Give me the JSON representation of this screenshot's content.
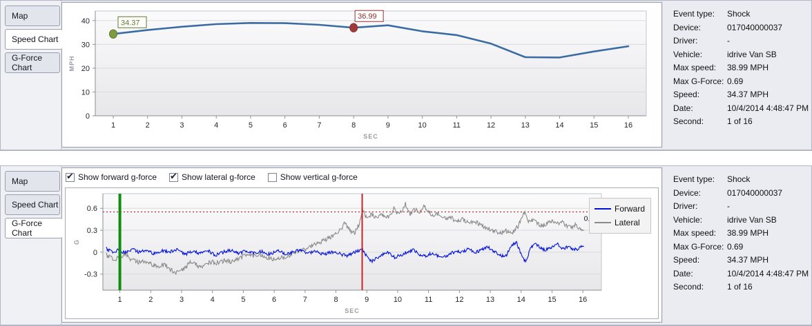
{
  "colors": {
    "speed_line": "#3a6ca3",
    "start_marker": "#7d9b41",
    "start_marker_dark": "#5e7a2a",
    "current_marker": "#a03939",
    "current_marker_dark": "#8c2f2f",
    "forward": "#0010d9",
    "lateral": "#8a8a8a",
    "threshold": "#cc0000",
    "start_vline": "#0d8f0d",
    "cursor_vline": "#cc2222"
  },
  "top_panel": {
    "tabs": [
      {
        "label": "Map",
        "selected": false
      },
      {
        "label": "Speed Chart",
        "selected": true
      },
      {
        "label": "G-Force Chart",
        "selected": false
      }
    ]
  },
  "bottom_panel": {
    "tabs": [
      {
        "label": "Map",
        "selected": false
      },
      {
        "label": "Speed Chart",
        "selected": false
      },
      {
        "label": "G-Force Chart",
        "selected": true
      }
    ],
    "checkboxes": [
      {
        "label": "Show forward g-force",
        "checked": true
      },
      {
        "label": "Show lateral g-force",
        "checked": true
      },
      {
        "label": "Show vertical g-force",
        "checked": false
      }
    ]
  },
  "event_info": {
    "rows": [
      {
        "label": "Event type:",
        "value": "Shock"
      },
      {
        "label": "Device:",
        "value": "017040000037"
      },
      {
        "label": "Driver:",
        "value": "-"
      },
      {
        "label": "Vehicle:",
        "value": "idrive Van SB"
      },
      {
        "label": "Max speed:",
        "value": "38.99 MPH"
      },
      {
        "label": "Max G-Force:",
        "value": "0.69"
      },
      {
        "label": "Speed:",
        "value": "34.37 MPH"
      },
      {
        "label": "Date:",
        "value": "10/4/2014 4:48:47 PM"
      },
      {
        "label": "Second:",
        "value": "1 of 16"
      }
    ]
  },
  "chart_data": [
    {
      "type": "line",
      "title": "Speed Chart",
      "xlabel": "SEC",
      "ylabel": "MPH",
      "x": [
        1,
        2,
        3,
        4,
        5,
        6,
        7,
        8,
        9,
        10,
        11,
        12,
        13,
        14,
        15,
        16
      ],
      "values": [
        34.37,
        36.0,
        37.4,
        38.5,
        38.99,
        38.9,
        38.2,
        36.99,
        38.0,
        35.5,
        33.9,
        30.3,
        24.6,
        24.5,
        27.0,
        29.2
      ],
      "ylim": [
        0,
        44
      ],
      "yticks": [
        0,
        10,
        20,
        30,
        40
      ],
      "grid": "horizontal",
      "markers": [
        {
          "x": 1,
          "y": 34.37,
          "label": "34.37",
          "role": "start"
        },
        {
          "x": 8,
          "y": 36.99,
          "label": "36.99",
          "role": "current-second"
        }
      ]
    },
    {
      "type": "line",
      "title": "G-Force Chart",
      "xlabel": "SEC",
      "ylabel": "G",
      "xlim": [
        0.45,
        16.6
      ],
      "ylim": [
        -0.52,
        0.8
      ],
      "xticks": [
        1,
        2,
        3,
        4,
        5,
        6,
        7,
        8,
        9,
        10,
        11,
        12,
        13,
        14,
        15,
        16
      ],
      "yticks": [
        -0.3,
        0,
        0.3,
        0.6
      ],
      "grid": "horizontal",
      "legend_position": "right",
      "threshold": {
        "value": 0.55,
        "label": "0.55"
      },
      "vlines": [
        {
          "x": 1,
          "role": "start",
          "width": 4
        },
        {
          "x": 8.85,
          "role": "current-second",
          "width": 2
        }
      ],
      "series": [
        {
          "name": "Forward",
          "color_key": "forward",
          "noise": 0.022,
          "points": [
            [
              0.55,
              0.05
            ],
            [
              0.75,
              0.0
            ],
            [
              0.95,
              0.03
            ],
            [
              1.15,
              -0.01
            ],
            [
              1.4,
              0.04
            ],
            [
              1.6,
              0.0
            ],
            [
              1.85,
              0.03
            ],
            [
              2.1,
              -0.02
            ],
            [
              2.35,
              0.02
            ],
            [
              2.6,
              0.0
            ],
            [
              2.85,
              0.03
            ],
            [
              3.1,
              -0.03
            ],
            [
              3.35,
              0.01
            ],
            [
              3.6,
              -0.02
            ],
            [
              3.85,
              0.02
            ],
            [
              4.1,
              -0.04
            ],
            [
              4.35,
              0.0
            ],
            [
              4.6,
              0.03
            ],
            [
              4.85,
              -0.02
            ],
            [
              5.1,
              0.02
            ],
            [
              5.35,
              -0.01
            ],
            [
              5.6,
              0.01
            ],
            [
              5.85,
              -0.03
            ],
            [
              6.1,
              0.02
            ],
            [
              6.35,
              -0.02
            ],
            [
              6.6,
              0.0
            ],
            [
              6.85,
              0.03
            ],
            [
              7.1,
              -0.02
            ],
            [
              7.35,
              0.01
            ],
            [
              7.6,
              -0.03
            ],
            [
              7.85,
              0.0
            ],
            [
              8.1,
              -0.02
            ],
            [
              8.35,
              -0.05
            ],
            [
              8.6,
              0.0
            ],
            [
              8.85,
              0.04
            ],
            [
              9.0,
              -0.06
            ],
            [
              9.15,
              -0.13
            ],
            [
              9.3,
              -0.09
            ],
            [
              9.5,
              -0.04
            ],
            [
              9.7,
              0.0
            ],
            [
              9.9,
              -0.07
            ],
            [
              10.1,
              -0.04
            ],
            [
              10.3,
              0.0
            ],
            [
              10.5,
              0.03
            ],
            [
              10.7,
              -0.03
            ],
            [
              10.9,
              -0.06
            ],
            [
              11.1,
              -0.01
            ],
            [
              11.3,
              -0.05
            ],
            [
              11.5,
              -0.07
            ],
            [
              11.7,
              -0.02
            ],
            [
              11.9,
              0.01
            ],
            [
              12.1,
              0.0
            ],
            [
              12.3,
              0.05
            ],
            [
              12.5,
              -0.01
            ],
            [
              12.7,
              0.03
            ],
            [
              12.9,
              0.08
            ],
            [
              13.1,
              0.02
            ],
            [
              13.3,
              -0.04
            ],
            [
              13.5,
              -0.06
            ],
            [
              13.7,
              0.1
            ],
            [
              13.85,
              0.13
            ],
            [
              14.0,
              -0.03
            ],
            [
              14.15,
              -0.14
            ],
            [
              14.3,
              0.06
            ],
            [
              14.45,
              0.11
            ],
            [
              14.6,
              0.07
            ],
            [
              14.75,
              0.03
            ],
            [
              14.9,
              0.05
            ],
            [
              15.05,
              0.08
            ],
            [
              15.2,
              0.11
            ],
            [
              15.35,
              0.04
            ],
            [
              15.5,
              0.07
            ],
            [
              15.65,
              0.05
            ],
            [
              15.8,
              0.03
            ],
            [
              15.95,
              0.08
            ],
            [
              16.05,
              0.06
            ]
          ]
        },
        {
          "name": "Lateral",
          "color_key": "lateral",
          "noise": 0.03,
          "points": [
            [
              0.55,
              -0.04
            ],
            [
              0.8,
              -0.1
            ],
            [
              1.0,
              -0.07
            ],
            [
              1.2,
              -0.02
            ],
            [
              1.35,
              -0.1
            ],
            [
              1.6,
              -0.14
            ],
            [
              1.8,
              -0.12
            ],
            [
              2.0,
              -0.16
            ],
            [
              2.2,
              -0.19
            ],
            [
              2.45,
              -0.17
            ],
            [
              2.6,
              -0.23
            ],
            [
              2.8,
              -0.29
            ],
            [
              3.0,
              -0.26
            ],
            [
              3.15,
              -0.2
            ],
            [
              3.3,
              -0.13
            ],
            [
              3.5,
              -0.18
            ],
            [
              3.65,
              -0.22
            ],
            [
              3.8,
              -0.16
            ],
            [
              4.0,
              -0.13
            ],
            [
              4.2,
              -0.15
            ],
            [
              4.4,
              -0.11
            ],
            [
              4.6,
              -0.13
            ],
            [
              4.8,
              -0.1
            ],
            [
              5.0,
              -0.06
            ],
            [
              5.15,
              -0.01
            ],
            [
              5.3,
              -0.05
            ],
            [
              5.5,
              -0.03
            ],
            [
              5.7,
              -0.06
            ],
            [
              5.9,
              -0.09
            ],
            [
              6.1,
              -0.1
            ],
            [
              6.3,
              -0.07
            ],
            [
              6.5,
              -0.04
            ],
            [
              6.7,
              0.0
            ],
            [
              6.9,
              0.03
            ],
            [
              7.1,
              0.05
            ],
            [
              7.3,
              0.1
            ],
            [
              7.5,
              0.14
            ],
            [
              7.7,
              0.18
            ],
            [
              7.9,
              0.22
            ],
            [
              8.1,
              0.28
            ],
            [
              8.3,
              0.4
            ],
            [
              8.45,
              0.3
            ],
            [
              8.6,
              0.26
            ],
            [
              8.75,
              0.38
            ],
            [
              8.88,
              0.58
            ],
            [
              9.0,
              0.45
            ],
            [
              9.15,
              0.52
            ],
            [
              9.3,
              0.46
            ],
            [
              9.45,
              0.52
            ],
            [
              9.6,
              0.47
            ],
            [
              9.75,
              0.5
            ],
            [
              9.9,
              0.62
            ],
            [
              10.0,
              0.52
            ],
            [
              10.15,
              0.58
            ],
            [
              10.25,
              0.66
            ],
            [
              10.4,
              0.52
            ],
            [
              10.55,
              0.58
            ],
            [
              10.7,
              0.55
            ],
            [
              10.85,
              0.62
            ],
            [
              11.0,
              0.56
            ],
            [
              11.15,
              0.5
            ],
            [
              11.3,
              0.53
            ],
            [
              11.5,
              0.46
            ],
            [
              11.7,
              0.48
            ],
            [
              11.9,
              0.42
            ],
            [
              12.1,
              0.45
            ],
            [
              12.3,
              0.4
            ],
            [
              12.5,
              0.42
            ],
            [
              12.7,
              0.37
            ],
            [
              12.9,
              0.33
            ],
            [
              13.1,
              0.3
            ],
            [
              13.3,
              0.26
            ],
            [
              13.5,
              0.29
            ],
            [
              13.7,
              0.26
            ],
            [
              13.9,
              0.35
            ],
            [
              14.1,
              0.55
            ],
            [
              14.25,
              0.42
            ],
            [
              14.4,
              0.44
            ],
            [
              14.55,
              0.38
            ],
            [
              14.7,
              0.36
            ],
            [
              14.85,
              0.4
            ],
            [
              15.0,
              0.43
            ],
            [
              15.15,
              0.38
            ],
            [
              15.3,
              0.43
            ],
            [
              15.45,
              0.36
            ],
            [
              15.6,
              0.34
            ],
            [
              15.75,
              0.37
            ],
            [
              15.9,
              0.32
            ],
            [
              16.05,
              0.27
            ]
          ]
        }
      ]
    }
  ]
}
